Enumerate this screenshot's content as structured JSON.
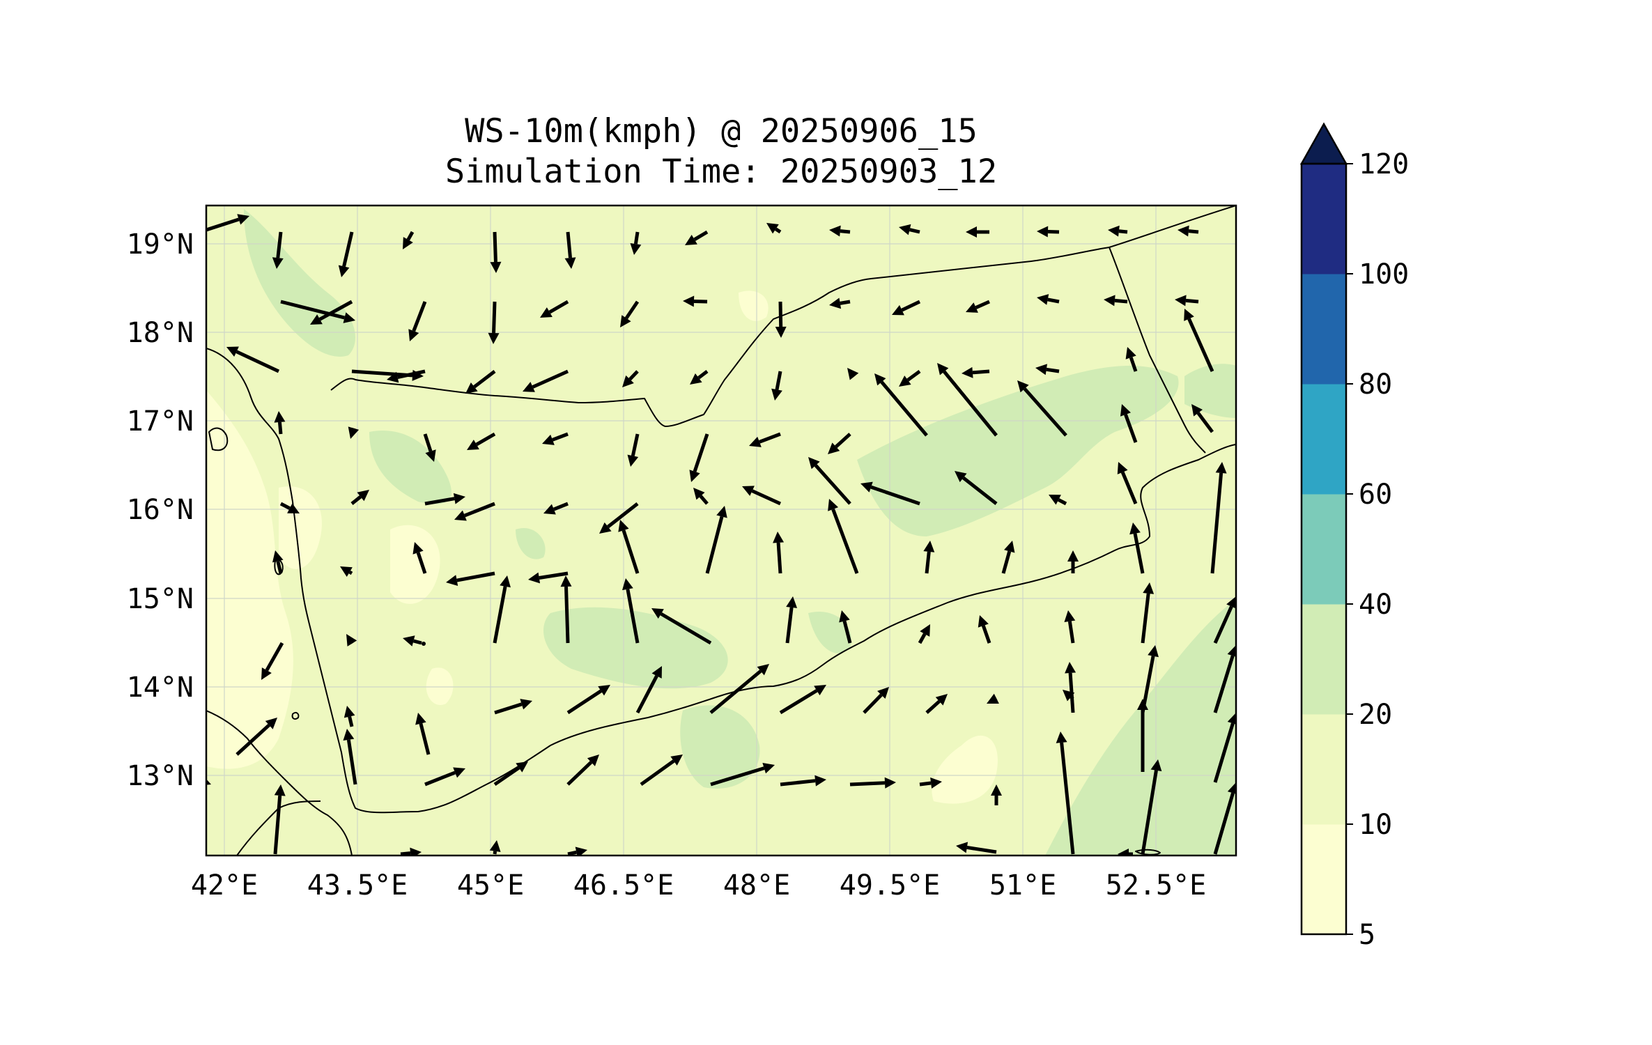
{
  "title": {
    "line1": "WS-10m(kmph) @ 20250906_15",
    "line2": "Simulation Time: 20250903_12"
  },
  "map": {
    "lon_ticks": [
      "42°E",
      "43.5°E",
      "45°E",
      "46.5°E",
      "48°E",
      "49.5°E",
      "51°E",
      "52.5°E"
    ],
    "lat_ticks": [
      "19°N",
      "18°N",
      "17°N",
      "16°N",
      "15°N",
      "14°N",
      "13°N"
    ],
    "lon_range": [
      41.9,
      53.5
    ],
    "lat_range": [
      12.1,
      19.45
    ],
    "grid": true,
    "background_level_color": "#eef8c0"
  },
  "colorbar": {
    "levels": [
      "5",
      "10",
      "20",
      "40",
      "60",
      "80",
      "100",
      "120"
    ],
    "colors": [
      "#fcfed1",
      "#eef8c0",
      "#d1ecb5",
      "#7ccbb9",
      "#2fa5c5",
      "#2166ac",
      "#1f2c82",
      "#0c1d4f"
    ],
    "extend": "max"
  }
}
